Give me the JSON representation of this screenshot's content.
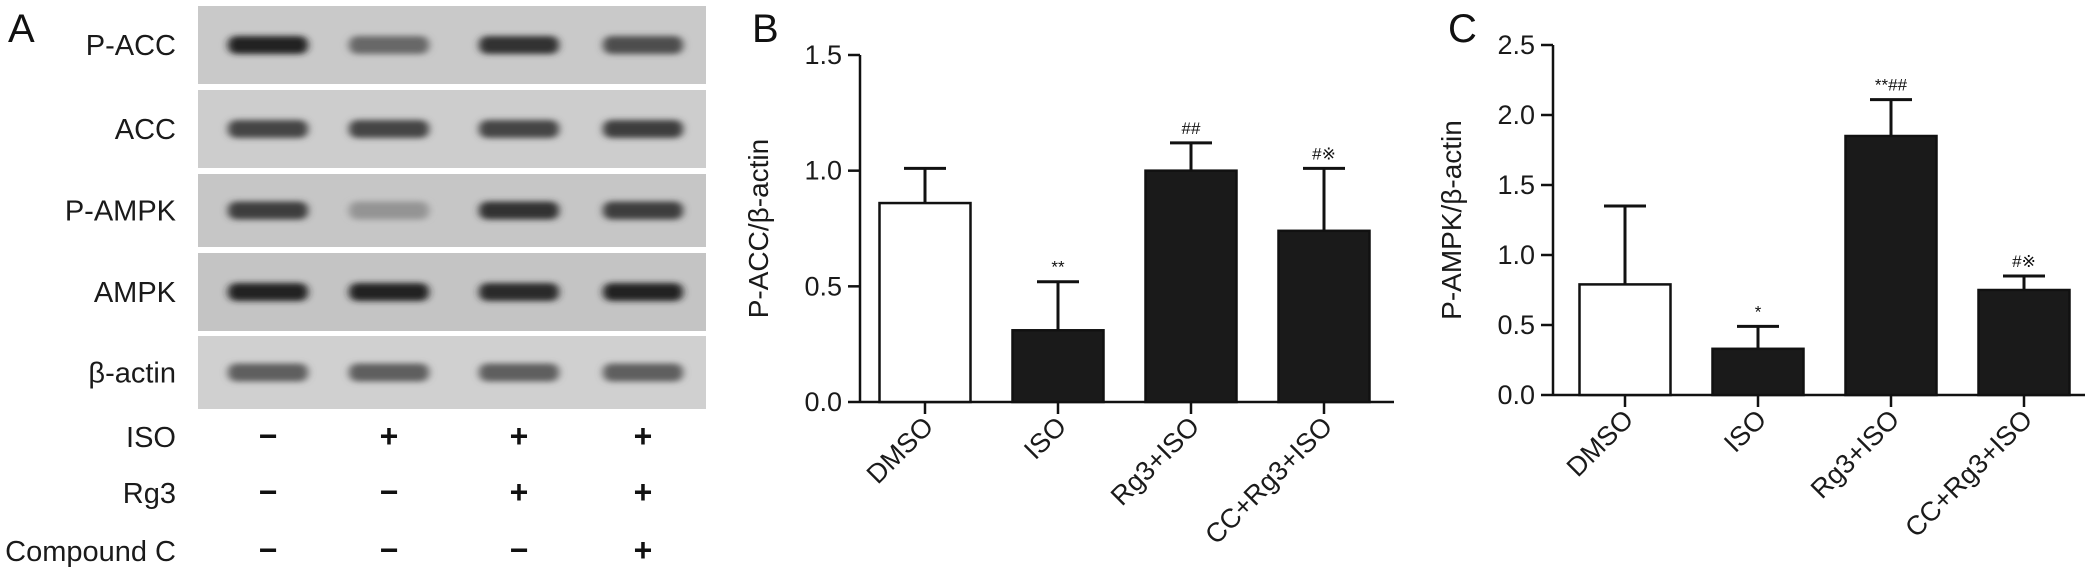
{
  "panels": {
    "A": "A",
    "B": "B",
    "C": "C"
  },
  "blot": {
    "bands": [
      {
        "label": "P-ACC",
        "intensity": [
          0.95,
          0.55,
          0.85,
          0.7
        ]
      },
      {
        "label": "ACC",
        "intensity": [
          0.75,
          0.75,
          0.75,
          0.8
        ]
      },
      {
        "label": "P-AMPK",
        "intensity": [
          0.8,
          0.3,
          0.85,
          0.8
        ]
      },
      {
        "label": "AMPK",
        "intensity": [
          0.95,
          0.95,
          0.9,
          0.95
        ]
      },
      {
        "label": "β-actin",
        "intensity": [
          0.6,
          0.6,
          0.6,
          0.6
        ]
      }
    ],
    "conditions": [
      {
        "label": "ISO",
        "signs": [
          "−",
          "+",
          "+",
          "+"
        ]
      },
      {
        "label": "Rg3",
        "signs": [
          "−",
          "−",
          "+",
          "+"
        ]
      },
      {
        "label": "Compound C",
        "signs": [
          "−",
          "−",
          "−",
          "+"
        ]
      }
    ]
  },
  "chart_data": [
    {
      "type": "bar",
      "panel": "B",
      "categories": [
        "DMSO",
        "ISO",
        "Rg3+ISO",
        "CC+Rg3+ISO"
      ],
      "values": [
        0.86,
        0.31,
        1.0,
        0.74
      ],
      "errors": [
        0.15,
        0.21,
        0.12,
        0.27
      ],
      "significance": [
        "",
        "**",
        "##",
        "#※"
      ],
      "bar_fill": [
        "#ffffff",
        "#1a1a1a",
        "#1a1a1a",
        "#1a1a1a"
      ],
      "ylabel": "P-ACC/β-actin",
      "xlabel": "",
      "ylim": [
        0,
        1.5
      ],
      "yticks": [
        0.0,
        0.5,
        1.0,
        1.5
      ],
      "ytick_labels": [
        "0.0",
        "0.5",
        "1.0",
        "1.5"
      ],
      "grid": false
    },
    {
      "type": "bar",
      "panel": "C",
      "categories": [
        "DMSO",
        "ISO",
        "Rg3+ISO",
        "CC+Rg3+ISO"
      ],
      "values": [
        0.79,
        0.33,
        1.85,
        0.75
      ],
      "errors": [
        0.56,
        0.16,
        0.26,
        0.1
      ],
      "significance": [
        "",
        "*",
        "**##",
        "#※"
      ],
      "bar_fill": [
        "#ffffff",
        "#1a1a1a",
        "#1a1a1a",
        "#1a1a1a"
      ],
      "ylabel": "P-AMPK/β-actin",
      "xlabel": "",
      "ylim": [
        0,
        2.5
      ],
      "yticks": [
        0.0,
        0.5,
        1.0,
        1.5,
        2.0,
        2.5
      ],
      "ytick_labels": [
        "0.0",
        "0.5",
        "1.0",
        "1.5",
        "2.0",
        "2.5"
      ],
      "grid": false
    }
  ]
}
